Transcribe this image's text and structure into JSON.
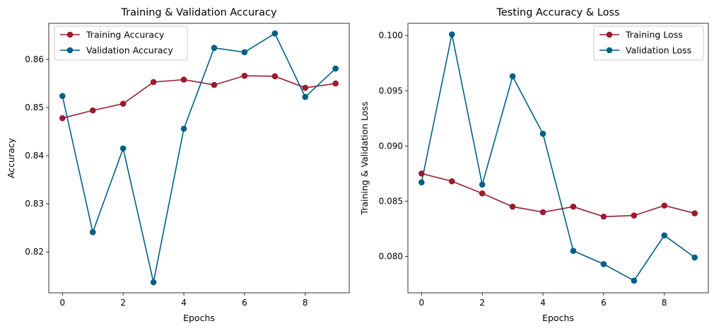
{
  "chart_data": [
    {
      "type": "line",
      "title": "Training & Validation Accuracy",
      "xlabel": "Epochs",
      "ylabel": "Accuracy",
      "x": [
        0,
        1,
        2,
        3,
        4,
        5,
        6,
        7,
        8,
        9
      ],
      "xlim": [
        -0.45,
        9.45
      ],
      "ylim": [
        0.8115,
        0.8675
      ],
      "xticks": [
        0,
        2,
        4,
        6,
        8
      ],
      "yticks": [
        0.82,
        0.83,
        0.84,
        0.85,
        0.86
      ],
      "ytick_labels": [
        "0.82",
        "0.83",
        "0.84",
        "0.85",
        "0.86"
      ],
      "legend_position": "top-left",
      "grid": false,
      "series": [
        {
          "name": "Training Accuracy",
          "color": "#9b1b30",
          "values": [
            0.8478,
            0.8494,
            0.8508,
            0.8553,
            0.8558,
            0.8547,
            0.8566,
            0.8565,
            0.8541,
            0.855
          ]
        },
        {
          "name": "Validation Accuracy",
          "color": "#005f86",
          "values": [
            0.8524,
            0.8241,
            0.8415,
            0.8137,
            0.8456,
            0.8624,
            0.8615,
            0.8654,
            0.8522,
            0.8581
          ]
        }
      ]
    },
    {
      "type": "line",
      "title": "Testing Accuracy & Loss",
      "xlabel": "Epochs",
      "ylabel": "Training & Validation Loss",
      "x": [
        0,
        1,
        2,
        3,
        4,
        5,
        6,
        7,
        8,
        9
      ],
      "xlim": [
        -0.45,
        9.45
      ],
      "ylim": [
        0.0767,
        0.1011
      ],
      "xticks": [
        0,
        2,
        4,
        6,
        8
      ],
      "yticks": [
        0.08,
        0.085,
        0.09,
        0.095,
        0.1
      ],
      "ytick_labels": [
        "0.080",
        "0.085",
        "0.090",
        "0.095",
        "0.100"
      ],
      "legend_position": "top-right",
      "grid": false,
      "series": [
        {
          "name": "Training Loss",
          "color": "#9b1b30",
          "values": [
            0.0875,
            0.0868,
            0.0857,
            0.0845,
            0.084,
            0.0845,
            0.0836,
            0.0837,
            0.0846,
            0.0839
          ]
        },
        {
          "name": "Validation Loss",
          "color": "#005f86",
          "values": [
            0.0867,
            0.1001,
            0.0865,
            0.0963,
            0.0911,
            0.0805,
            0.0793,
            0.0778,
            0.0819,
            0.0799
          ]
        }
      ]
    }
  ]
}
